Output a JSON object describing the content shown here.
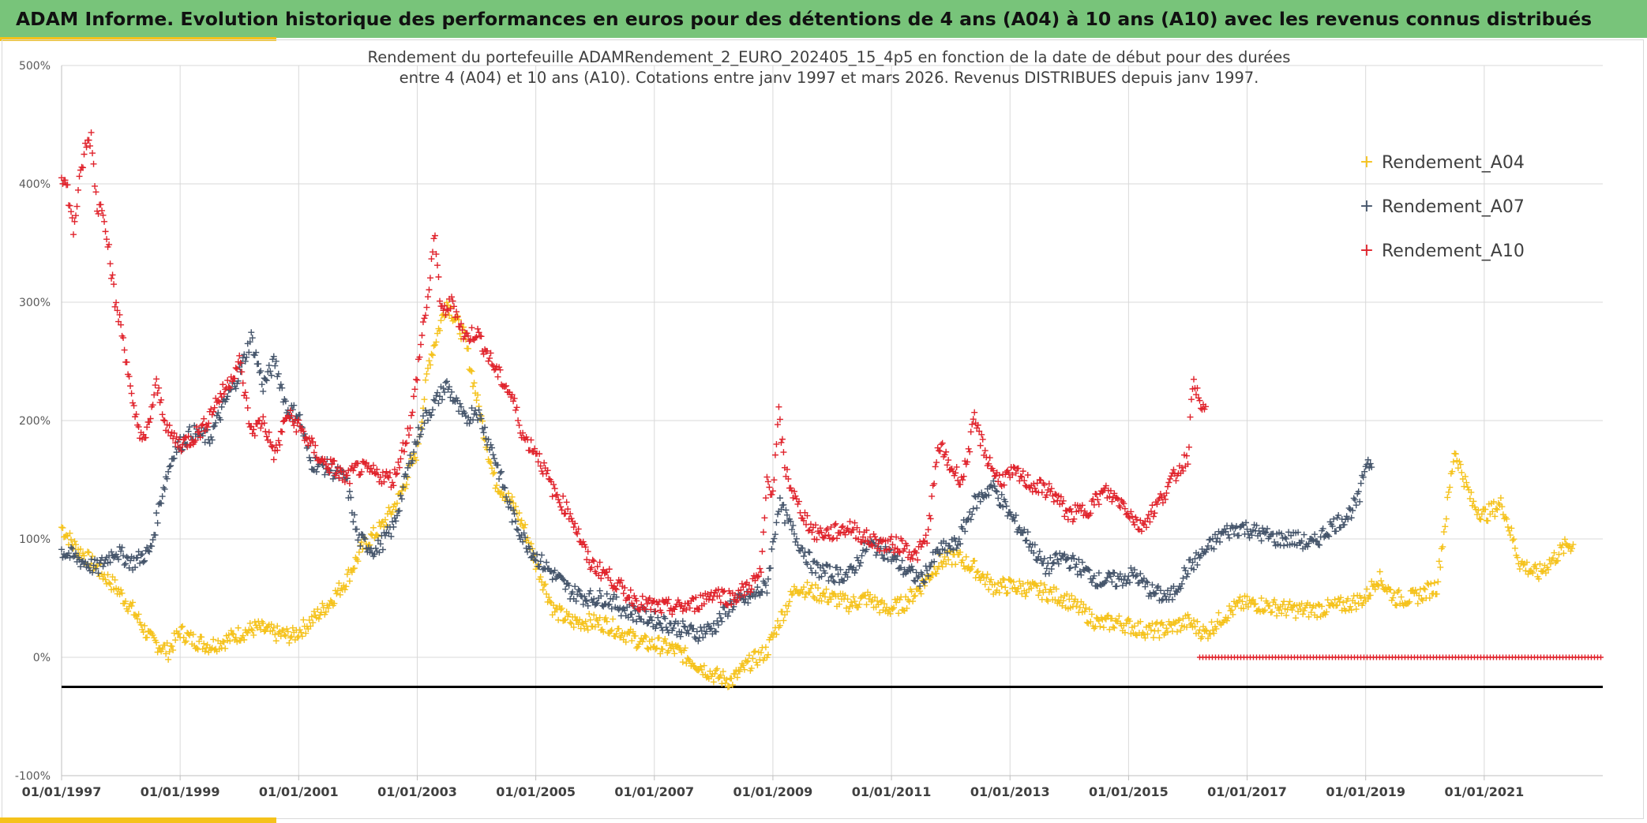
{
  "banner": {
    "title": "ADAM Informe. Evolution historique des performances en euros pour des détentions de 4 ans (A04) à 10 ans (A10) avec les revenus connus distribués"
  },
  "chart_data": {
    "type": "scatter",
    "title_line1": "Rendement du portefeuille ADAMRendement_2_EURO_202405_15_4p5  en fonction de la date de début pour des durées",
    "title_line2": "entre 4 (A04) et 10 ans (A10). Cotations entre janv 1997 et mars 2026. Revenus DISTRIBUES depuis janv 1997.",
    "xlabel": "",
    "ylabel": "",
    "x_range": [
      "1997-01-01",
      "2022-12-31"
    ],
    "ylim": [
      -100,
      500
    ],
    "yticks": [
      -100,
      0,
      100,
      200,
      300,
      400,
      500
    ],
    "ytick_labels": [
      "-100%",
      "0%",
      "100%",
      "200%",
      "300%",
      "400%",
      "500%"
    ],
    "xtick_labels": [
      "01/01/1997",
      "01/01/1999",
      "01/01/2001",
      "01/01/2003",
      "01/01/2005",
      "01/01/2007",
      "01/01/2009",
      "01/01/2011",
      "01/01/2013",
      "01/01/2015",
      "01/01/2017",
      "01/01/2019",
      "01/01/2021"
    ],
    "grid": true,
    "marker": "+",
    "legend_position": "top-right",
    "reference_line": -25,
    "reference_line_color": "#000000",
    "series": [
      {
        "name": "Rendement_A04",
        "color": "#f5c21b",
        "x": [
          1997.0,
          1997.2,
          1997.4,
          1997.6,
          1997.9,
          1998.2,
          1998.5,
          1998.8,
          1999.0,
          1999.2,
          1999.5,
          1999.8,
          2000.0,
          2000.3,
          2000.6,
          2000.9,
          2001.2,
          2001.5,
          2001.8,
          2002.1,
          2002.4,
          2002.7,
          2003.0,
          2003.2,
          2003.5,
          2003.8,
          2004.0,
          2004.3,
          2004.6,
          2004.8,
          2005.0,
          2005.3,
          2005.6,
          2005.9,
          2006.2,
          2006.5,
          2006.8,
          2007.1,
          2007.4,
          2007.7,
          2008.0,
          2008.3,
          2008.6,
          2008.9,
          2009.1,
          2009.4,
          2009.7,
          2010.0,
          2010.3,
          2010.6,
          2010.9,
          2011.2,
          2011.5,
          2011.8,
          2012.1,
          2012.4,
          2012.7,
          2013.0,
          2013.3,
          2013.6,
          2013.9,
          2014.2,
          2014.5,
          2014.8,
          2015.1,
          2015.4,
          2015.7,
          2016.0,
          2016.3,
          2016.6,
          2016.9,
          2017.2,
          2017.5,
          2017.8,
          2018.1,
          2018.4,
          2018.7,
          2019.0,
          2019.2,
          2019.5,
          2019.8,
          2020.0,
          2020.2,
          2020.5,
          2020.8,
          2021.0,
          2021.3,
          2021.6,
          2021.9,
          2022.2,
          2022.4
        ],
        "y": [
          110,
          95,
          85,
          75,
          60,
          40,
          15,
          5,
          22,
          15,
          10,
          15,
          20,
          25,
          20,
          18,
          30,
          45,
          65,
          95,
          110,
          135,
          175,
          250,
          300,
          270,
          220,
          150,
          130,
          110,
          80,
          40,
          30,
          30,
          28,
          20,
          12,
          10,
          5,
          -5,
          -15,
          -20,
          -5,
          5,
          30,
          60,
          55,
          50,
          45,
          50,
          40,
          45,
          60,
          80,
          85,
          75,
          60,
          60,
          58,
          55,
          50,
          40,
          28,
          30,
          25,
          22,
          25,
          30,
          20,
          35,
          45,
          45,
          42,
          40,
          40,
          42,
          45,
          50,
          68,
          50,
          50,
          55,
          60,
          175,
          130,
          120,
          130,
          80,
          70,
          85,
          95
        ]
      },
      {
        "name": "Rendement_A07",
        "color": "#44546a",
        "x": [
          1997.0,
          1997.2,
          1997.4,
          1997.6,
          1997.9,
          1998.2,
          1998.5,
          1998.7,
          1998.9,
          1999.2,
          1999.5,
          1999.8,
          2000.0,
          2000.2,
          2000.4,
          2000.6,
          2000.8,
          2001.0,
          2001.2,
          2001.5,
          2001.8,
          2002.0,
          2002.3,
          2002.6,
          2002.9,
          2003.1,
          2003.3,
          2003.5,
          2003.8,
          2004.0,
          2004.3,
          2004.6,
          2004.8,
          2005.0,
          2005.3,
          2005.6,
          2005.9,
          2006.2,
          2006.5,
          2006.8,
          2007.1,
          2007.4,
          2007.7,
          2008.0,
          2008.3,
          2008.6,
          2008.9,
          2009.1,
          2009.4,
          2009.7,
          2010.0,
          2010.3,
          2010.6,
          2010.9,
          2011.2,
          2011.5,
          2011.8,
          2012.1,
          2012.4,
          2012.7,
          2013.0,
          2013.3,
          2013.6,
          2013.9,
          2014.2,
          2014.5,
          2014.8,
          2015.1,
          2015.4,
          2015.7,
          2016.0,
          2016.3,
          2016.6,
          2016.9,
          2017.2,
          2017.5,
          2017.8,
          2018.1,
          2018.4,
          2018.7,
          2018.9,
          2019.0
        ],
        "y": [
          90,
          85,
          80,
          75,
          90,
          80,
          90,
          140,
          175,
          190,
          185,
          220,
          240,
          270,
          230,
          250,
          210,
          205,
          165,
          160,
          150,
          100,
          90,
          110,
          170,
          200,
          215,
          230,
          200,
          210,
          170,
          120,
          100,
          85,
          70,
          55,
          50,
          50,
          40,
          35,
          30,
          25,
          20,
          25,
          45,
          50,
          60,
          130,
          100,
          75,
          70,
          70,
          95,
          90,
          75,
          65,
          90,
          95,
          130,
          145,
          120,
          100,
          75,
          85,
          75,
          65,
          65,
          70,
          55,
          50,
          75,
          90,
          105,
          110,
          105,
          100,
          100,
          95,
          110,
          120,
          135,
          165
        ]
      },
      {
        "name": "Rendement_A10",
        "color": "#e0222b",
        "x": [
          1997.0,
          1997.1,
          1997.2,
          1997.3,
          1997.4,
          1997.5,
          1997.6,
          1997.7,
          1997.8,
          1997.9,
          1998.0,
          1998.1,
          1998.2,
          1998.4,
          1998.6,
          1998.8,
          1999.0,
          1999.2,
          1999.4,
          1999.6,
          1999.8,
          2000.0,
          2000.2,
          2000.4,
          2000.6,
          2000.8,
          2001.0,
          2001.2,
          2001.4,
          2001.6,
          2001.8,
          2002.0,
          2002.3,
          2002.6,
          2002.9,
          2003.0,
          2003.1,
          2003.2,
          2003.3,
          2003.4,
          2003.6,
          2003.8,
          2004.0,
          2004.3,
          2004.6,
          2004.8,
          2005.0,
          2005.3,
          2005.6,
          2005.9,
          2006.2,
          2006.5,
          2006.8,
          2007.1,
          2007.4,
          2007.7,
          2008.0,
          2008.3,
          2008.6,
          2008.8,
          2008.9,
          2009.0,
          2009.1,
          2009.2,
          2009.4,
          2009.7,
          2010.0,
          2010.3,
          2010.6,
          2010.9,
          2011.2,
          2011.4,
          2011.6,
          2011.8,
          2012.0,
          2012.2,
          2012.4,
          2012.6,
          2012.8,
          2013.1,
          2013.4,
          2013.7,
          2014.0,
          2014.3,
          2014.6,
          2014.9,
          2015.2,
          2015.5,
          2015.8,
          2016.0,
          2016.1,
          2016.2
        ],
        "y": [
          410,
          395,
          360,
          400,
          430,
          440,
          380,
          380,
          345,
          300,
          280,
          250,
          210,
          180,
          230,
          190,
          180,
          185,
          195,
          215,
          230,
          250,
          190,
          200,
          170,
          205,
          195,
          180,
          165,
          160,
          150,
          160,
          155,
          150,
          200,
          240,
          280,
          310,
          360,
          290,
          300,
          270,
          275,
          245,
          220,
          185,
          175,
          140,
          120,
          80,
          70,
          55,
          45,
          42,
          42,
          45,
          55,
          50,
          60,
          70,
          150,
          140,
          205,
          160,
          130,
          105,
          105,
          110,
          100,
          95,
          95,
          85,
          100,
          180,
          160,
          150,
          200,
          170,
          150,
          155,
          145,
          140,
          120,
          125,
          140,
          130,
          110,
          130,
          155,
          170,
          240,
          210
        ]
      },
      {
        "name": "",
        "color": "#e0222b",
        "x": [
          2016.2,
          2022.99
        ],
        "y": [
          0,
          0
        ],
        "style": "flat-markers"
      }
    ]
  }
}
